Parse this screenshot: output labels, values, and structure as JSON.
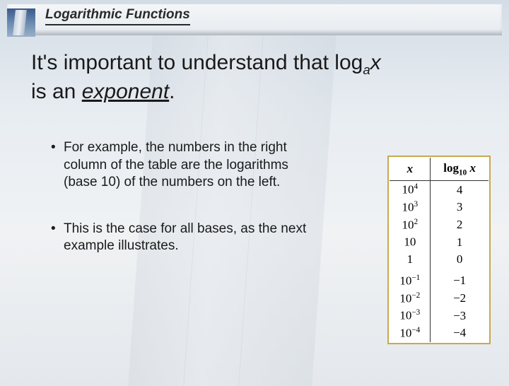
{
  "header": {
    "title": "Logarithmic Functions"
  },
  "main": {
    "line1_a": "It's important to understand that log",
    "line1_sub": "a",
    "line1_var": "x",
    "line2_a": "is an ",
    "line2_em": "exponent",
    "line2_b": "."
  },
  "bullets": {
    "item1": "For example, the numbers in the right column of the table are the logarithms (base 10) of the numbers on the left.",
    "item2": "This is the case for all bases, as the next example illustrates."
  },
  "table": {
    "col1_header": "x",
    "col2_header_pre": "log",
    "col2_header_sub": "10",
    "col2_header_var": "x",
    "rows": [
      {
        "x_base": "10",
        "x_exp": "4",
        "log": "4"
      },
      {
        "x_base": "10",
        "x_exp": "3",
        "log": "3"
      },
      {
        "x_base": "10",
        "x_exp": "2",
        "log": "2"
      },
      {
        "x_base": "10",
        "x_exp": "",
        "log": "1"
      },
      {
        "x_base": "1",
        "x_exp": "",
        "log": "0"
      },
      {
        "x_base": "10",
        "x_exp": "−1",
        "log": "−1"
      },
      {
        "x_base": "10",
        "x_exp": "−2",
        "log": "−2"
      },
      {
        "x_base": "10",
        "x_exp": "−3",
        "log": "−3"
      },
      {
        "x_base": "10",
        "x_exp": "−4",
        "log": "−4"
      }
    ]
  },
  "style": {
    "header_border": "#bcc4cd",
    "table_border": "#c9a84e",
    "text_color": "#1a1a1a"
  }
}
